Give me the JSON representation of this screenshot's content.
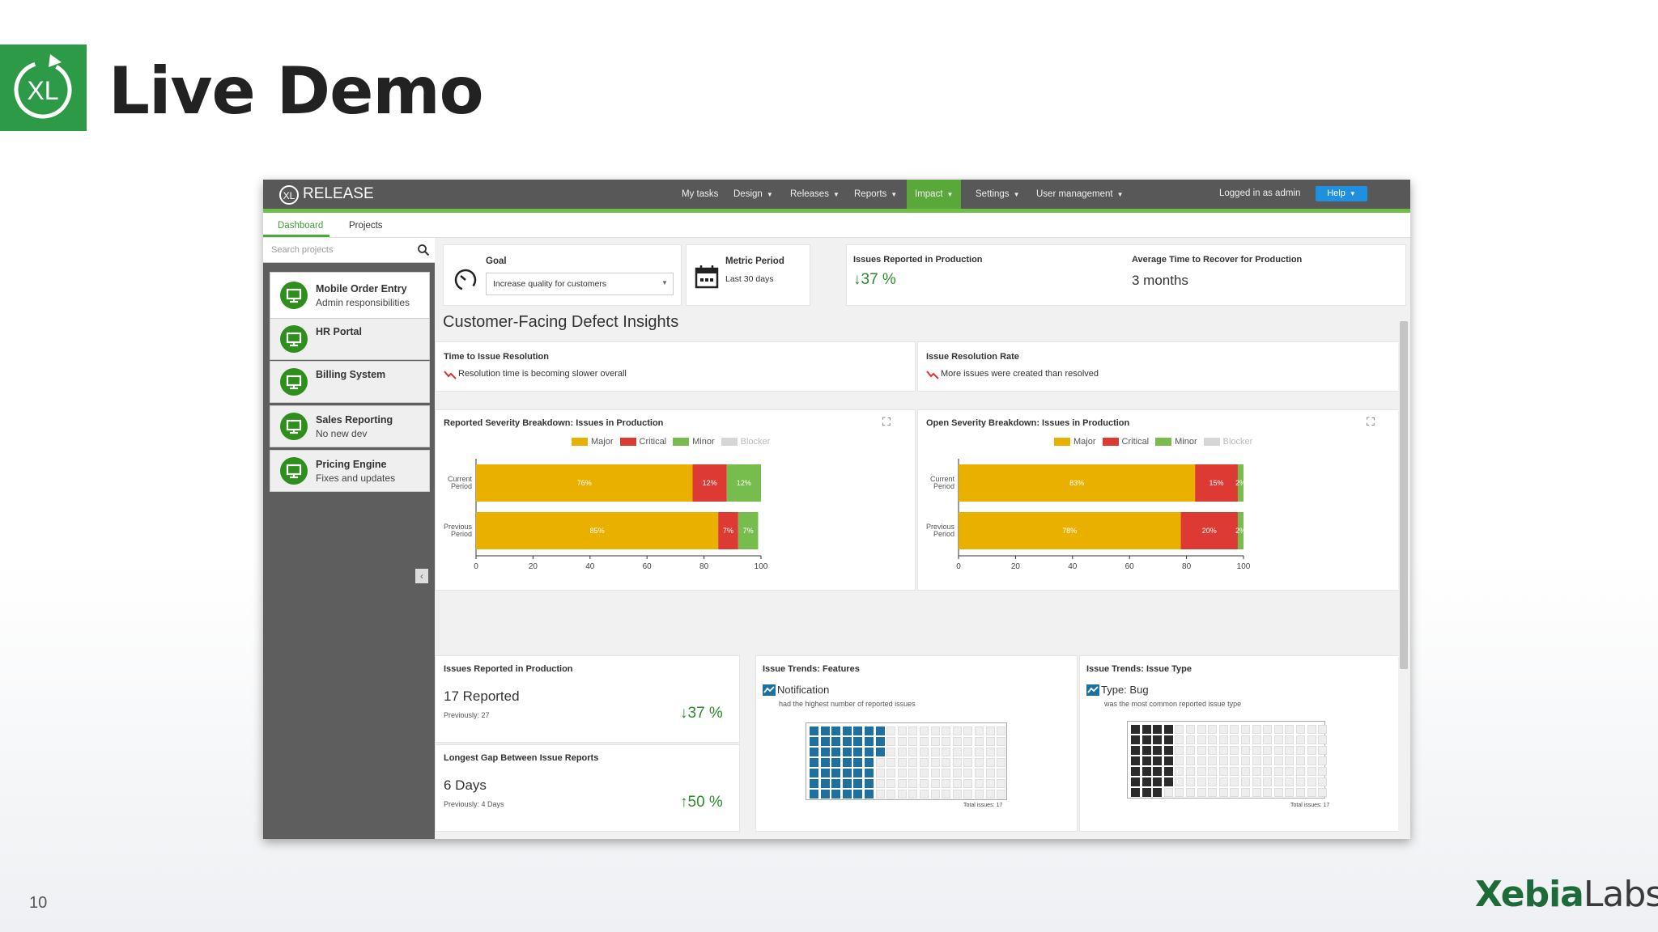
{
  "slide": {
    "title": "Live Demo",
    "number": "10",
    "brand_main": "Xebia",
    "brand_suffix": "Labs",
    "logo_text": "XL",
    "accent": "#2d9a47"
  },
  "app": {
    "name": "RELEASE",
    "logo_text": "XL",
    "nav": [
      {
        "label": "My tasks",
        "dropdown": false
      },
      {
        "label": "Design",
        "dropdown": true
      },
      {
        "label": "Releases",
        "dropdown": true
      },
      {
        "label": "Reports",
        "dropdown": true
      },
      {
        "label": "Impact",
        "dropdown": true,
        "active": true
      },
      {
        "label": "Settings",
        "dropdown": true
      },
      {
        "label": "User management",
        "dropdown": true
      }
    ],
    "user_status": "Logged in as admin",
    "help_label": "Help",
    "tabs": [
      {
        "label": "Dashboard",
        "active": true
      },
      {
        "label": "Projects"
      }
    ],
    "search_placeholder": "Search projects",
    "projects": [
      {
        "name": "Mobile Order Entry",
        "sub": "Admin responsibilities",
        "selected": true
      },
      {
        "name": "HR Portal",
        "sub": ""
      },
      {
        "name": "Billing System",
        "sub": ""
      },
      {
        "name": "Sales Reporting",
        "sub": "No new dev"
      },
      {
        "name": "Pricing Engine",
        "sub": "Fixes and updates"
      }
    ],
    "colors": {
      "topbar": "#585858",
      "accent_green": "#6cbe45",
      "help_blue": "#1f8fe0"
    }
  },
  "summary": {
    "goal_label": "Goal",
    "goal_value": "Increase quality for customers",
    "metric_period_label": "Metric Period",
    "metric_period_value": "Last 30 days",
    "issues_label": "Issues Reported in Production",
    "issues_change": "37 %",
    "recover_label": "Average Time to Recover for Production",
    "recover_value": "3 months"
  },
  "section_title": "Customer-Facing Defect Insights",
  "insights": {
    "resolution_time_title": "Time to Issue Resolution",
    "resolution_time_text": "Resolution time is becoming slower overall",
    "resolution_rate_title": "Issue Resolution Rate",
    "resolution_rate_text": "More issues were created than resolved"
  },
  "legend": [
    {
      "label": "Major",
      "color": "#e9b000"
    },
    {
      "label": "Critical",
      "color": "#dc3a33"
    },
    {
      "label": "Minor",
      "color": "#77bd4d"
    },
    {
      "label": "Blocker",
      "color": "#d6d6d6",
      "disabled": true
    }
  ],
  "chart_data": [
    {
      "type": "bar",
      "orientation": "horizontal",
      "stacked": true,
      "title": "Reported Severity Breakdown: Issues in Production",
      "categories": [
        "Current Period",
        "Previous Period"
      ],
      "series": [
        {
          "name": "Major",
          "values": [
            76,
            85
          ],
          "labels": [
            "76%",
            "85%"
          ]
        },
        {
          "name": "Critical",
          "values": [
            12,
            7
          ],
          "labels": [
            "12%",
            "7%"
          ]
        },
        {
          "name": "Minor",
          "values": [
            12,
            7
          ],
          "labels": [
            "12%",
            "7%"
          ]
        },
        {
          "name": "Blocker",
          "values": [
            0,
            0
          ],
          "labels": [
            "",
            ""
          ]
        }
      ],
      "xlim": [
        0,
        100
      ],
      "xticks": [
        0,
        20,
        40,
        60,
        80,
        100
      ],
      "legend": "top"
    },
    {
      "type": "bar",
      "orientation": "horizontal",
      "stacked": true,
      "title": "Open Severity Breakdown: Issues in Production",
      "categories": [
        "Current Period",
        "Previous Period"
      ],
      "series": [
        {
          "name": "Major",
          "values": [
            83,
            78
          ],
          "labels": [
            "83%",
            "78%"
          ]
        },
        {
          "name": "Critical",
          "values": [
            15,
            20
          ],
          "labels": [
            "15%",
            "20%"
          ]
        },
        {
          "name": "Minor",
          "values": [
            2,
            2
          ],
          "labels": [
            "2%",
            "2%"
          ]
        },
        {
          "name": "Blocker",
          "values": [
            0,
            0
          ],
          "labels": [
            "",
            ""
          ]
        }
      ],
      "xlim": [
        0,
        100
      ],
      "xticks": [
        0,
        20,
        40,
        60,
        80,
        100
      ],
      "legend": "top"
    }
  ],
  "bottom": {
    "reported_title": "Issues Reported in Production",
    "reported_value": "17 Reported",
    "reported_prev": "Previously: 27",
    "reported_change": "37 %",
    "gap_title": "Longest Gap Between Issue Reports",
    "gap_value": "6 Days",
    "gap_prev": "Previously: 4 Days",
    "gap_change": "50 %",
    "features_title": "Issue Trends: Features",
    "features_name": "Notification",
    "features_desc": "had the highest number of reported issues",
    "features_total": "Total issues: 17",
    "features_filled": 45,
    "features_color": "#1f6f9f",
    "type_title": "Issue Trends: Issue Type",
    "type_prefix": "Type:",
    "type_name": "Bug",
    "type_desc": "was the most common reported issue type",
    "type_total": "Total issues: 17",
    "type_filled": 27,
    "type_color": "#2b2b2b"
  }
}
